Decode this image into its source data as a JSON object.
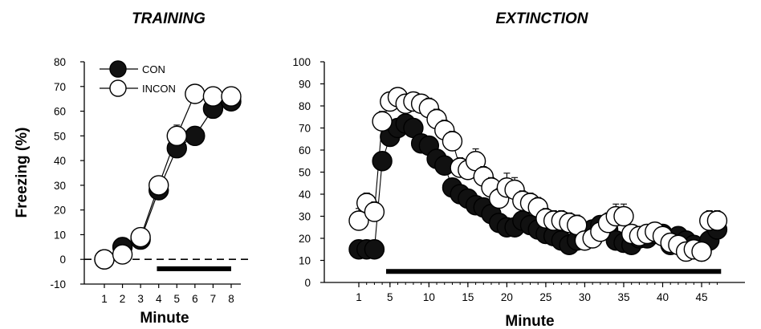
{
  "chart_data": [
    {
      "type": "line",
      "title": "TRAINING",
      "xlabel": "Minute",
      "ylabel": "Freezing (%)",
      "x": [
        1,
        2,
        3,
        4,
        5,
        6,
        7,
        8
      ],
      "x_ticks": [
        "1",
        "2",
        "3",
        "4",
        "5",
        "6",
        "7",
        "8"
      ],
      "y_ticks": [
        "-10",
        "0",
        "10",
        "20",
        "30",
        "40",
        "50",
        "60",
        "70",
        "80"
      ],
      "xlim": [
        0,
        8.6
      ],
      "ylim": [
        -10,
        80
      ],
      "reference_line_y": 0,
      "shock_bar": [
        3.9,
        8.0
      ],
      "legend_position": "top-left",
      "series": [
        {
          "name": "CON",
          "fill": "#111111",
          "values": [
            0,
            5,
            8,
            28,
            45,
            50,
            61,
            64
          ],
          "err": [
            0,
            1,
            1,
            2,
            2,
            2,
            2,
            1
          ]
        },
        {
          "name": "INCON",
          "fill": "#ffffff",
          "values": [
            0,
            2,
            9,
            30,
            50,
            67,
            66,
            66
          ],
          "err": [
            0,
            0,
            0,
            2,
            3,
            2,
            2,
            1
          ]
        }
      ]
    },
    {
      "type": "line",
      "title": "EXTINCTION",
      "xlabel": "Minute",
      "ylabel": "",
      "x_ticks": [
        "5",
        "10",
        "15",
        "20",
        "25",
        "30",
        "35",
        "40",
        "45"
      ],
      "x_tick_values": [
        5,
        10,
        15,
        20,
        25,
        30,
        35,
        40,
        45
      ],
      "extra_x_ticks": [
        "1"
      ],
      "y_ticks": [
        "0",
        "10",
        "20",
        "30",
        "40",
        "50",
        "60",
        "70",
        "80",
        "90",
        "100"
      ],
      "xlim": [
        0,
        49
      ],
      "ylim": [
        0,
        100
      ],
      "shock_bar": [
        4.5,
        47.5
      ],
      "series": [
        {
          "name": "CON",
          "fill": "#111111",
          "values": [
            15,
            15,
            15,
            55,
            66,
            70,
            72,
            70,
            63,
            62,
            56,
            53,
            43,
            40,
            38,
            35,
            34,
            31,
            27,
            25,
            25,
            28,
            26,
            24,
            22,
            21,
            19,
            17,
            19,
            21,
            24,
            26,
            24,
            19,
            18,
            17,
            20,
            20,
            22,
            22,
            17,
            21,
            19,
            17,
            14,
            19,
            24
          ],
          "err": [
            0,
            0,
            0,
            2,
            2,
            2,
            2,
            2,
            2,
            2,
            2,
            2,
            2,
            2,
            2,
            2,
            2,
            2,
            2,
            2,
            2,
            2,
            2,
            2,
            2,
            2,
            2,
            2,
            2,
            2,
            2,
            2,
            2,
            2,
            2,
            2,
            2,
            2,
            2,
            2,
            2,
            2,
            2,
            2,
            2,
            2,
            2
          ]
        },
        {
          "name": "INCON",
          "fill": "#ffffff",
          "values": [
            28,
            36,
            32,
            73,
            82,
            84,
            81,
            82,
            81,
            79,
            74,
            69,
            64,
            52,
            51,
            55,
            48,
            43,
            38,
            43,
            42,
            37,
            36,
            34,
            29,
            28,
            28,
            27,
            26,
            19,
            20,
            23,
            27,
            30,
            30,
            22,
            21,
            22,
            23,
            21,
            18,
            17,
            14,
            15,
            14,
            28,
            28
          ],
          "err": [
            4,
            3,
            3,
            3,
            2,
            2,
            2,
            2,
            2,
            3,
            3,
            3,
            3,
            3,
            3,
            4,
            3,
            3,
            3,
            5,
            4,
            3,
            3,
            3,
            3,
            3,
            3,
            3,
            3,
            2,
            2,
            2,
            3,
            4,
            4,
            2,
            2,
            2,
            2,
            2,
            2,
            2,
            2,
            2,
            2,
            3,
            3
          ]
        }
      ]
    }
  ]
}
